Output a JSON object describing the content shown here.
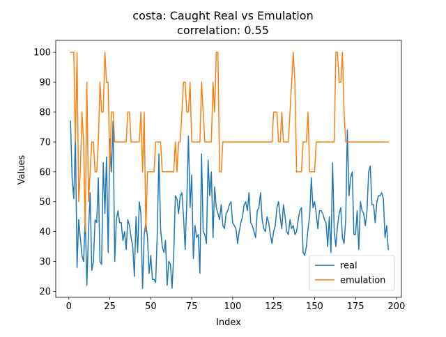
{
  "chart_data": {
    "type": "line",
    "title": "costa: Caught Real vs Emulation",
    "subtitle": "correlation: 0.55",
    "xlabel": "Index",
    "ylabel": "Values",
    "xlim": [
      -8,
      203
    ],
    "ylim": [
      18,
      104
    ],
    "xticks": [
      0,
      25,
      50,
      75,
      100,
      125,
      150,
      175,
      200
    ],
    "yticks": [
      20,
      30,
      40,
      50,
      60,
      70,
      80,
      90,
      100
    ],
    "legend_position": "lower-right",
    "grid": false,
    "x": [
      1,
      2,
      3,
      4,
      5,
      6,
      7,
      8,
      9,
      10,
      11,
      12,
      13,
      14,
      15,
      16,
      17,
      18,
      19,
      20,
      21,
      22,
      23,
      24,
      25,
      26,
      27,
      28,
      29,
      30,
      31,
      32,
      33,
      34,
      35,
      36,
      37,
      38,
      39,
      40,
      41,
      42,
      43,
      44,
      45,
      46,
      47,
      48,
      49,
      50,
      51,
      52,
      53,
      54,
      55,
      56,
      57,
      58,
      59,
      60,
      61,
      62,
      63,
      64,
      65,
      66,
      67,
      68,
      69,
      70,
      71,
      72,
      73,
      74,
      75,
      76,
      77,
      78,
      79,
      80,
      81,
      82,
      83,
      84,
      85,
      86,
      87,
      88,
      89,
      90,
      91,
      92,
      93,
      94,
      95,
      96,
      97,
      98,
      99,
      100,
      101,
      102,
      103,
      104,
      105,
      106,
      107,
      108,
      109,
      110,
      111,
      112,
      113,
      114,
      115,
      116,
      117,
      118,
      119,
      120,
      121,
      122,
      123,
      124,
      125,
      126,
      127,
      128,
      129,
      130,
      131,
      132,
      133,
      134,
      135,
      136,
      137,
      138,
      139,
      140,
      141,
      142,
      143,
      144,
      145,
      146,
      147,
      148,
      149,
      150,
      151,
      152,
      153,
      154,
      155,
      156,
      157,
      158,
      159,
      160,
      161,
      162,
      163,
      164,
      165,
      166,
      167,
      168,
      169,
      170,
      171,
      172,
      173,
      174,
      175,
      176,
      177,
      178,
      179,
      180,
      181,
      182,
      183,
      184,
      185,
      186,
      187,
      188,
      189,
      190,
      191,
      192,
      193,
      194,
      195
    ],
    "series": [
      {
        "name": "real",
        "color": "#1f77b4",
        "values": [
          77,
          58,
          51,
          72,
          28,
          44,
          38,
          32,
          30,
          45,
          22,
          40,
          53,
          27,
          30,
          44,
          43,
          58,
          30,
          29,
          63,
          46,
          65,
          33,
          71,
          60,
          77,
          30,
          44,
          47,
          43,
          43,
          37,
          40,
          34,
          44,
          42,
          38,
          35,
          25,
          45,
          33,
          50,
          46,
          21,
          39,
          43,
          38,
          26,
          32,
          24,
          24,
          23,
          40,
          66,
          41,
          35,
          33,
          37,
          22,
          30,
          29,
          21,
          32,
          52,
          51,
          46,
          52,
          53,
          45,
          34,
          50,
          72,
          48,
          59,
          31,
          42,
          38,
          39,
          26,
          66,
          40,
          39,
          36,
          64,
          52,
          60,
          38,
          55,
          48,
          46,
          44,
          49,
          42,
          41,
          46,
          47,
          49,
          50,
          43,
          42,
          41,
          36,
          40,
          43,
          45,
          49,
          50,
          47,
          53,
          43,
          42,
          40,
          38,
          47,
          48,
          53,
          44,
          41,
          40,
          45,
          43,
          39,
          36,
          40,
          42,
          48,
          50,
          45,
          41,
          49,
          45,
          40,
          39,
          44,
          41,
          42,
          39,
          40,
          44,
          47,
          48,
          33,
          32,
          35,
          41,
          45,
          58,
          48,
          50,
          46,
          41,
          47,
          47,
          46,
          44,
          43,
          35,
          45,
          33,
          63,
          40,
          35,
          42,
          46,
          48,
          38,
          36,
          44,
          74,
          52,
          58,
          60,
          39,
          39,
          47,
          34,
          50,
          47,
          46,
          42,
          47,
          60,
          62,
          49,
          49,
          43,
          50,
          52,
          52,
          53,
          51,
          38,
          42,
          34
        ]
      },
      {
        "name": "emulation",
        "color": "#ff7f0e",
        "values": [
          100,
          100,
          100,
          70,
          100,
          50,
          60,
          80,
          70,
          40,
          90,
          50,
          60,
          70,
          70,
          60,
          60,
          70,
          90,
          80,
          80,
          100,
          90,
          90,
          60,
          80,
          80,
          70,
          70,
          70,
          70,
          70,
          70,
          70,
          70,
          80,
          80,
          70,
          70,
          70,
          70,
          70,
          70,
          80,
          60,
          80,
          40,
          60,
          60,
          60,
          60,
          60,
          70,
          70,
          70,
          70,
          60,
          60,
          60,
          60,
          60,
          60,
          60,
          60,
          70,
          60,
          70,
          70,
          80,
          90,
          90,
          80,
          80,
          90,
          70,
          70,
          70,
          70,
          70,
          70,
          90,
          80,
          70,
          70,
          70,
          70,
          70,
          90,
          80,
          100,
          100,
          60,
          60,
          70,
          70,
          70,
          70,
          70,
          70,
          70,
          70,
          70,
          70,
          70,
          70,
          70,
          70,
          70,
          70,
          70,
          70,
          70,
          70,
          70,
          70,
          70,
          70,
          70,
          70,
          70,
          70,
          70,
          70,
          70,
          80,
          80,
          80,
          70,
          70,
          80,
          70,
          70,
          70,
          70,
          80,
          90,
          100,
          90,
          60,
          60,
          60,
          60,
          70,
          70,
          70,
          80,
          60,
          60,
          60,
          60,
          70,
          70,
          70,
          70,
          70,
          70,
          70,
          70,
          70,
          70,
          70,
          70,
          100,
          100,
          90,
          90,
          100,
          80,
          70,
          70,
          70,
          70,
          70,
          70,
          70,
          70,
          70,
          70,
          70,
          70,
          70,
          70,
          70,
          70,
          70,
          70,
          70,
          70,
          70,
          70,
          70,
          70,
          70,
          70,
          70
        ]
      }
    ]
  }
}
